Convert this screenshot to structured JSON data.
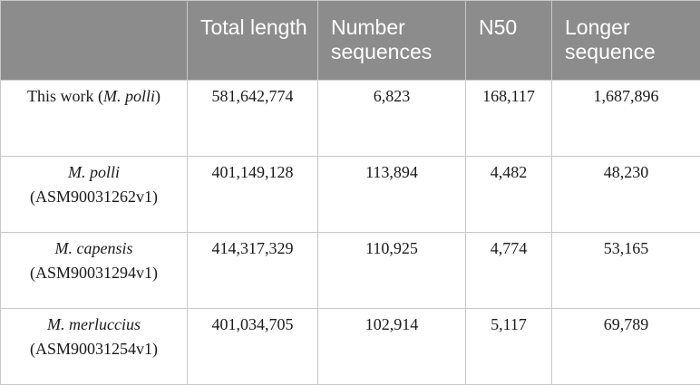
{
  "table": {
    "headers": [
      "",
      "Total length",
      "Number sequences",
      "N50",
      "Longer sequence"
    ],
    "rows": [
      {
        "name_prefix": "This work (",
        "name_italic": "M. polli",
        "name_suffix": ")",
        "name_second_line": "",
        "total_length": "581,642,774",
        "number_sequences": "6,823",
        "n50": "168,117",
        "longer_sequence": "1,687,896"
      },
      {
        "name_prefix": "",
        "name_italic": "M. polli",
        "name_suffix": "",
        "name_second_line": "(ASM90031262v1)",
        "total_length": "401,149,128",
        "number_sequences": "113,894",
        "n50": "4,482",
        "longer_sequence": "48,230"
      },
      {
        "name_prefix": "",
        "name_italic": "M. capensis",
        "name_suffix": "",
        "name_second_line": "(ASM90031294v1)",
        "total_length": "414,317,329",
        "number_sequences": "110,925",
        "n50": "4,774",
        "longer_sequence": "53,165"
      },
      {
        "name_prefix": "",
        "name_italic": "M. merluccius",
        "name_suffix": "",
        "name_second_line": "(ASM90031254v1)",
        "total_length": "401,034,705",
        "number_sequences": "102,914",
        "n50": "5,117",
        "longer_sequence": "69,789"
      }
    ]
  },
  "colors": {
    "header_bg": "#8c8c8c",
    "header_text": "#ffffff",
    "border": "#c8c8c8"
  }
}
